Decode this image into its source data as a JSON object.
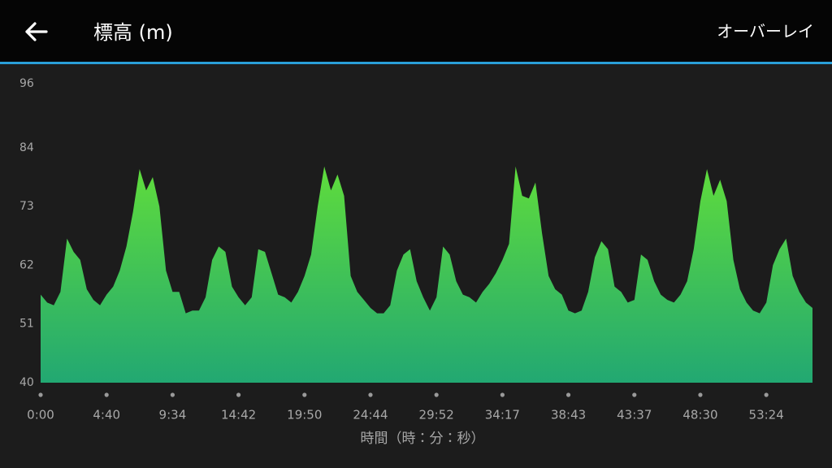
{
  "header": {
    "title": "標高 (m)",
    "action": "オーバーレイ"
  },
  "chart_data": {
    "type": "area",
    "x_label": "時間（時：分：秒）",
    "categories": [
      "0:00",
      null,
      null,
      null,
      null,
      null,
      null,
      null,
      null,
      null,
      "4:40",
      null,
      null,
      null,
      null,
      null,
      null,
      null,
      null,
      null,
      "9:34",
      null,
      null,
      null,
      null,
      null,
      null,
      null,
      null,
      null,
      "14:42",
      null,
      null,
      null,
      null,
      null,
      null,
      null,
      null,
      null,
      "19:50",
      null,
      null,
      null,
      null,
      null,
      null,
      null,
      null,
      null,
      "24:44",
      null,
      null,
      null,
      null,
      null,
      null,
      null,
      null,
      null,
      "29:52",
      null,
      null,
      null,
      null,
      null,
      null,
      null,
      null,
      null,
      "34:17",
      null,
      null,
      null,
      null,
      null,
      null,
      null,
      null,
      null,
      "38:43",
      null,
      null,
      null,
      null,
      null,
      null,
      null,
      null,
      null,
      "43:37",
      null,
      null,
      null,
      null,
      null,
      null,
      null,
      null,
      null,
      "48:30",
      null,
      null,
      null,
      null,
      null,
      null,
      null,
      null,
      null,
      "53:24",
      null,
      null,
      null,
      null,
      null,
      null,
      null
    ],
    "values": [
      56.5,
      55,
      54.5,
      57,
      67,
      64.5,
      63,
      57.5,
      55.5,
      54.5,
      56.5,
      58,
      61,
      65.5,
      72,
      80,
      76,
      78.5,
      73,
      61,
      57,
      57,
      53,
      53.5,
      53.5,
      56,
      63,
      65.5,
      64.5,
      58,
      56,
      54.5,
      56,
      65,
      64.5,
      60.5,
      56.5,
      56,
      55,
      57,
      60,
      64,
      73,
      80.5,
      76,
      79,
      75,
      60,
      57,
      55.5,
      54,
      53,
      53,
      54.5,
      61,
      64,
      65,
      59,
      56,
      53.5,
      56,
      65.5,
      64,
      59,
      56.5,
      56,
      55,
      57,
      58.5,
      60.5,
      63,
      66,
      80.5,
      75,
      74.5,
      77.5,
      68,
      60,
      57.5,
      56.5,
      53.5,
      53,
      53.5,
      57,
      63.5,
      66.5,
      65,
      58,
      57,
      55,
      55.5,
      64,
      63,
      59,
      56.5,
      55.5,
      55,
      56.5,
      59,
      65,
      74,
      80,
      75,
      78,
      74,
      63,
      57.5,
      55,
      53.5,
      53,
      55,
      62,
      65,
      67,
      60,
      57,
      55,
      54
    ],
    "ylim": [
      40,
      96
    ],
    "yticks": [
      40,
      51,
      62,
      73,
      84,
      96
    ],
    "grid": false,
    "color_top": "#5fdc3c",
    "color_bottom": "#22a872"
  }
}
